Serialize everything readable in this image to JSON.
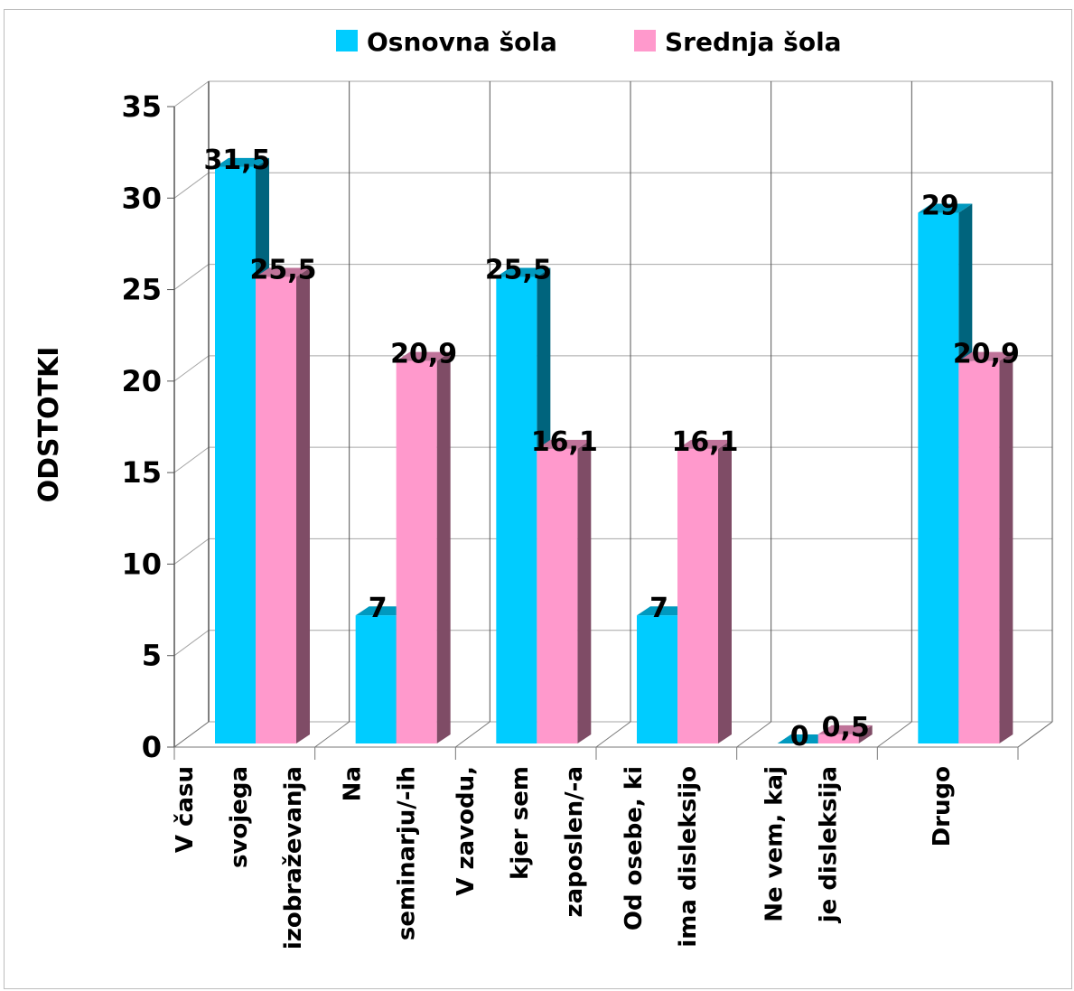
{
  "chart_data": {
    "type": "bar",
    "categories": [
      [
        "V času",
        "svojega",
        "izobraževanja"
      ],
      [
        "Na",
        "seminarju/-ih"
      ],
      [
        "V zavodu,",
        "kjer sem",
        "zaposlen/-a"
      ],
      [
        "Od osebe, ki",
        "ima disleksijo"
      ],
      [
        "Ne vem, kaj",
        "je disleksija"
      ],
      [
        "Drugo"
      ]
    ],
    "series": [
      {
        "name": "Osnovna šola",
        "values": [
          31.5,
          7,
          25.5,
          7,
          0,
          29
        ],
        "data_labels": [
          "31,5",
          "7",
          "25,5",
          "7",
          "0",
          "29"
        ]
      },
      {
        "name": "Srednja šola",
        "values": [
          25.5,
          20.9,
          16.1,
          16.1,
          0.5,
          20.9
        ],
        "data_labels": [
          "25,5",
          "20,9",
          "16,1",
          "16,1",
          "0,5",
          "20,9"
        ]
      }
    ],
    "ylabel": "ODSTOTKI",
    "ylim": [
      0,
      35
    ],
    "yticks": [
      "0",
      "5",
      "10",
      "15",
      "20",
      "25",
      "30",
      "35"
    ],
    "grid": true,
    "legend": "top",
    "colors": {
      "osnovna_front": "#00ccff",
      "osnovna_side": "#00647d",
      "osnovna_top": "#0099bf",
      "srednja_front": "#ff99cc",
      "srednja_side": "#7f4c66",
      "srednja_top": "#bf7399",
      "grid": "#a6a6a6"
    }
  }
}
